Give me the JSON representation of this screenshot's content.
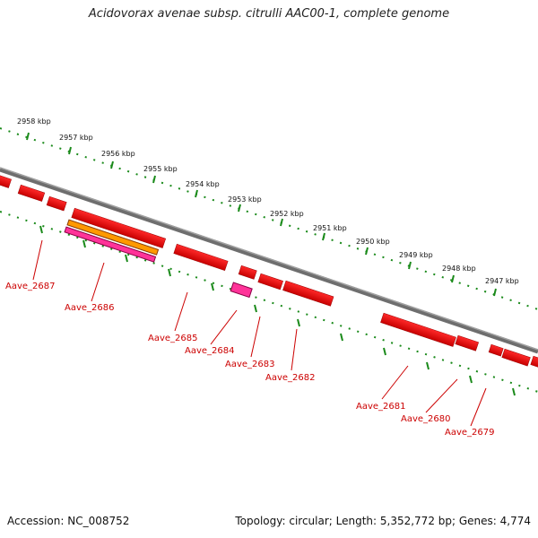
{
  "title": "Acidovorax avenae subsp. citrulli AAC00-1, complete genome",
  "footer": {
    "accession": "Accession: NC_008752",
    "summary": "Topology: circular; Length: 5,352,772 bp; Genes: 4,774"
  },
  "kbp_ticks": [
    "2958 kbp",
    "2957 kbp",
    "2956 kbp",
    "2955 kbp",
    "2954 kbp",
    "2953 kbp",
    "2952 kbp",
    "2951 kbp",
    "2950 kbp",
    "2949 kbp",
    "2948 kbp",
    "2947 kbp"
  ],
  "gene_labels": [
    "Aave_2687",
    "Aave_2686",
    "Aave_2685",
    "Aave_2684",
    "Aave_2683",
    "Aave_2682",
    "Aave_2681",
    "Aave_2680",
    "Aave_2679"
  ],
  "colors": {
    "gene": "#ee0000",
    "gene_highlight": "#ff3399",
    "rna_orange": "#ff9900",
    "backbone": "#808080",
    "tick": "#1a8a1a",
    "label": "#cc0000"
  }
}
